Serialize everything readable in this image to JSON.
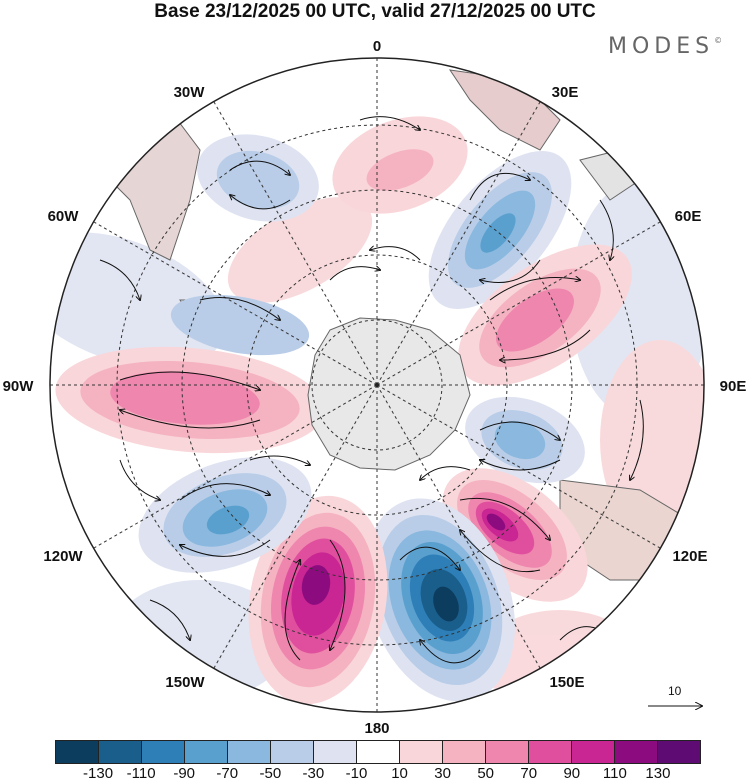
{
  "title": "Base 23/12/2025 00 UTC, valid 27/12/2025 00 UTC",
  "brand": "MODES",
  "brand_mark": "©",
  "longitude_labels": [
    "0",
    "30E",
    "60E",
    "90E",
    "120E",
    "150E",
    "180",
    "150W",
    "120W",
    "90W",
    "60W",
    "30W"
  ],
  "reference_vector": "10",
  "colorbar": {
    "colors": [
      "#0d3d5e",
      "#1a5e8c",
      "#2e7fb8",
      "#5aa0cf",
      "#8ab8de",
      "#b9cde8",
      "#dfe3f1",
      "#ffffff",
      "#f9d6d9",
      "#f5b3c2",
      "#ef86ae",
      "#e04f9e",
      "#c92593",
      "#8c0c80",
      "#5e0b73"
    ],
    "tick_labels": [
      "-130",
      "-110",
      "-90",
      "-70",
      "-50",
      "-30",
      "-10",
      "10",
      "30",
      "50",
      "70",
      "90",
      "110",
      "130"
    ]
  },
  "anomaly_centers": [
    {
      "lon_sector": "20W",
      "value": -45
    },
    {
      "lon_sector": "10E",
      "value": 45
    },
    {
      "lon_sector": "45E",
      "value": -75
    },
    {
      "lon_sector": "75E",
      "value": 75
    },
    {
      "lon_sector": "105E",
      "value": -55
    },
    {
      "lon_sector": "135E",
      "value": 115
    },
    {
      "lon_sector": "165E",
      "value": -120
    },
    {
      "lon_sector": "165W",
      "value": 110
    },
    {
      "lon_sector": "130W",
      "value": -65
    },
    {
      "lon_sector": "95W",
      "value": 70
    },
    {
      "lon_sector": "70W",
      "value": -35
    }
  ],
  "colors": {
    "land": "#e8e8e8",
    "grid": "#333333",
    "coast": "#555555"
  }
}
